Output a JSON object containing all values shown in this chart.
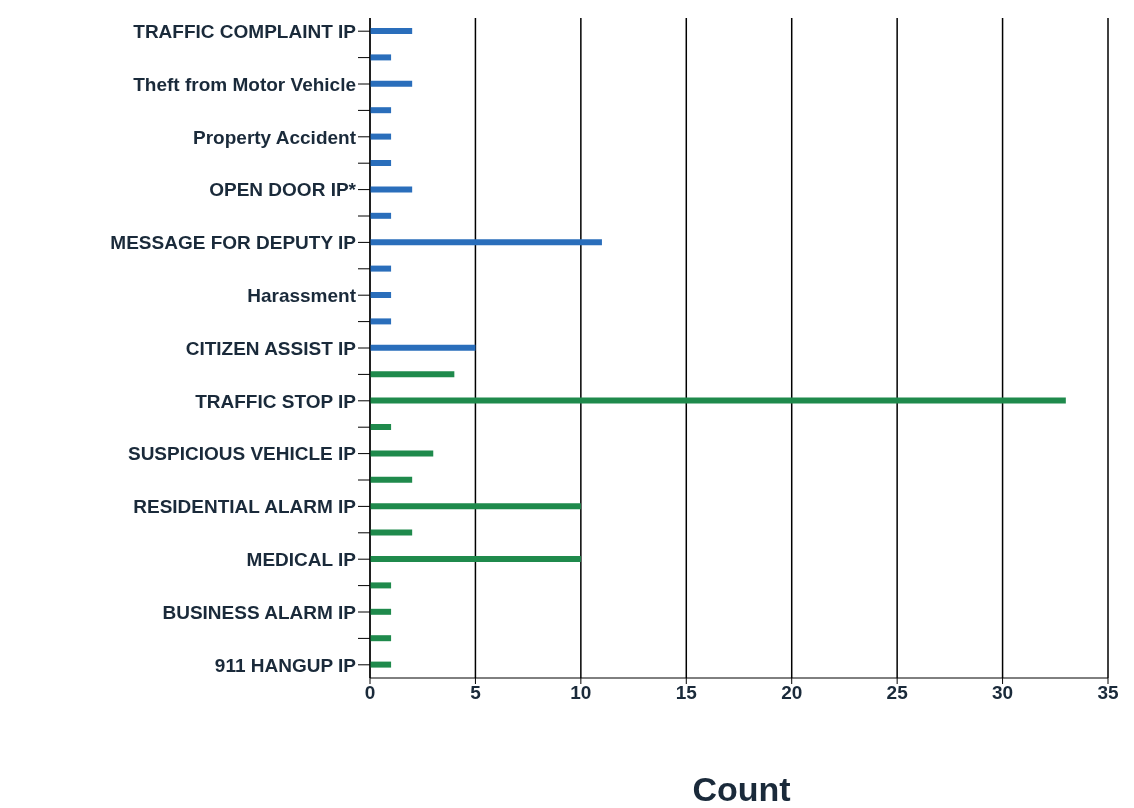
{
  "chart_data": {
    "type": "bar",
    "orientation": "horizontal",
    "xlabel": "Count",
    "categories": [
      "TRAFFIC COMPLAINT IP",
      null,
      "Theft from Motor Vehicle",
      null,
      "Property Accident",
      null,
      "OPEN DOOR IP*",
      null,
      "MESSAGE FOR DEPUTY IP",
      null,
      "Harassment",
      null,
      "CITIZEN ASSIST IP",
      null,
      "TRAFFIC STOP IP",
      null,
      "SUSPICIOUS VEHICLE IP",
      null,
      "RESIDENTIAL ALARM IP",
      null,
      "MEDICAL IP",
      null,
      "BUSINESS ALARM IP",
      null,
      "911 HANGUP IP"
    ],
    "values": [
      2,
      1,
      2,
      1,
      1,
      1,
      2,
      1,
      11,
      1,
      1,
      1,
      5,
      4,
      33,
      1,
      3,
      2,
      10,
      2,
      10,
      1,
      1,
      1,
      1
    ],
    "colors": [
      "#2a6ebb",
      "#2a6ebb",
      "#2a6ebb",
      "#2a6ebb",
      "#2a6ebb",
      "#2a6ebb",
      "#2a6ebb",
      "#2a6ebb",
      "#2a6ebb",
      "#2a6ebb",
      "#2a6ebb",
      "#2a6ebb",
      "#2a6ebb",
      "#1f8a4c",
      "#1f8a4c",
      "#1f8a4c",
      "#1f8a4c",
      "#1f8a4c",
      "#1f8a4c",
      "#1f8a4c",
      "#1f8a4c",
      "#1f8a4c",
      "#1f8a4c",
      "#1f8a4c",
      "#1f8a4c"
    ],
    "xlim": [
      0,
      35
    ],
    "xticks": [
      0,
      5,
      10,
      15,
      20,
      25,
      30,
      35
    ],
    "grid": "x",
    "legend": false
  }
}
